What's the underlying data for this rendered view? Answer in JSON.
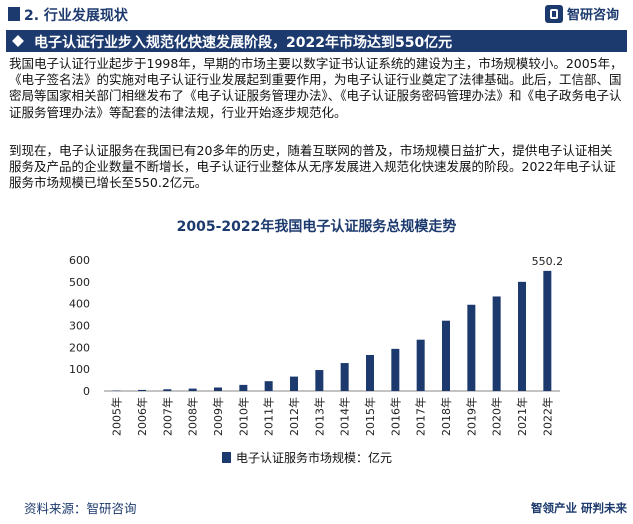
{
  "header": {
    "section_title": "2. 行业发展现状",
    "logo_text": "智研咨询"
  },
  "banner": {
    "title": "电子认证行业步入规范化快速发展阶段，2022年市场达到550亿元"
  },
  "body": {
    "paragraph1": "我国电子认证行业起步于1998年，早期的市场主要以数字证书认证系统的建设为主，市场规模较小。2005年，《电子签名法》的实施对电子认证行业发展起到重要作用，为电子认证行业奠定了法律基础。此后，工信部、国密局等国家相关部门相继发布了《电子认证服务管理办法》、《电子认证服务密码管理办法》和《电子政务电子认证服务管理办法》等配套的法律法规，行业开始逐步规范化。",
    "paragraph2": "到现在，电子认证服务在我国已有20多年的历史，随着互联网的普及，市场规模日益扩大，提供电子认证相关服务及产品的企业数量不断增长，电子认证行业整体从无序发展进入规范化快速发展的阶段。2022年电子认证服务市场规模已增长至550.2亿元。"
  },
  "chart_data": {
    "type": "bar",
    "title": "2005-2022年我国电子认证服务总规模走势",
    "categories": [
      "2005年",
      "2006年",
      "2007年",
      "2008年",
      "2009年",
      "2010年",
      "2011年",
      "2012年",
      "2013年",
      "2014年",
      "2015年",
      "2016年",
      "2017年",
      "2018年",
      "2019年",
      "2020年",
      "2021年",
      "2022年"
    ],
    "series": [
      {
        "name": "电子认证服务市场规模：亿元",
        "values": [
          2,
          5,
          8,
          11,
          16,
          28,
          45,
          66,
          96,
          128,
          165,
          193,
          235,
          322,
          395,
          433,
          500,
          550.2
        ]
      }
    ],
    "data_labels": {
      "2022年": "550.2"
    },
    "yticks": [
      "0",
      "100",
      "200",
      "300",
      "400",
      "500",
      "600"
    ],
    "ylim": [
      0,
      600
    ],
    "grid": false,
    "legend_position": "bottom",
    "bar_color": "#1d3a6e"
  },
  "footer": {
    "source": "资料来源：智研咨询",
    "brand": "智领产业  研判未来"
  }
}
